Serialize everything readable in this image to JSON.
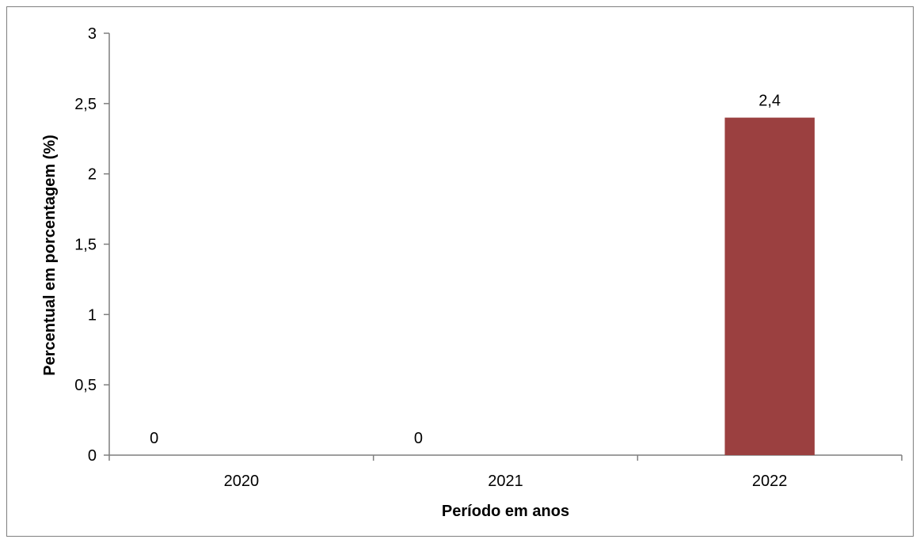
{
  "chart_data": {
    "type": "bar",
    "categories": [
      "2020",
      "2021",
      "2022"
    ],
    "values": [
      0,
      0,
      2.4
    ],
    "data_labels": [
      "0",
      "0",
      "2,4"
    ],
    "title": "",
    "xlabel": "Período em anos",
    "ylabel": "Percentual em porcentagem (%)",
    "ylim": [
      0,
      3
    ],
    "y_ticks": [
      0,
      0.5,
      1,
      1.5,
      2,
      2.5,
      3
    ],
    "y_tick_labels": [
      "0",
      "0,5",
      "1",
      "1,5",
      "2",
      "2,5",
      "3"
    ],
    "grid": false,
    "legend": "none",
    "bar_color": "#9b4040",
    "axis_color": "#7f7f7f"
  }
}
